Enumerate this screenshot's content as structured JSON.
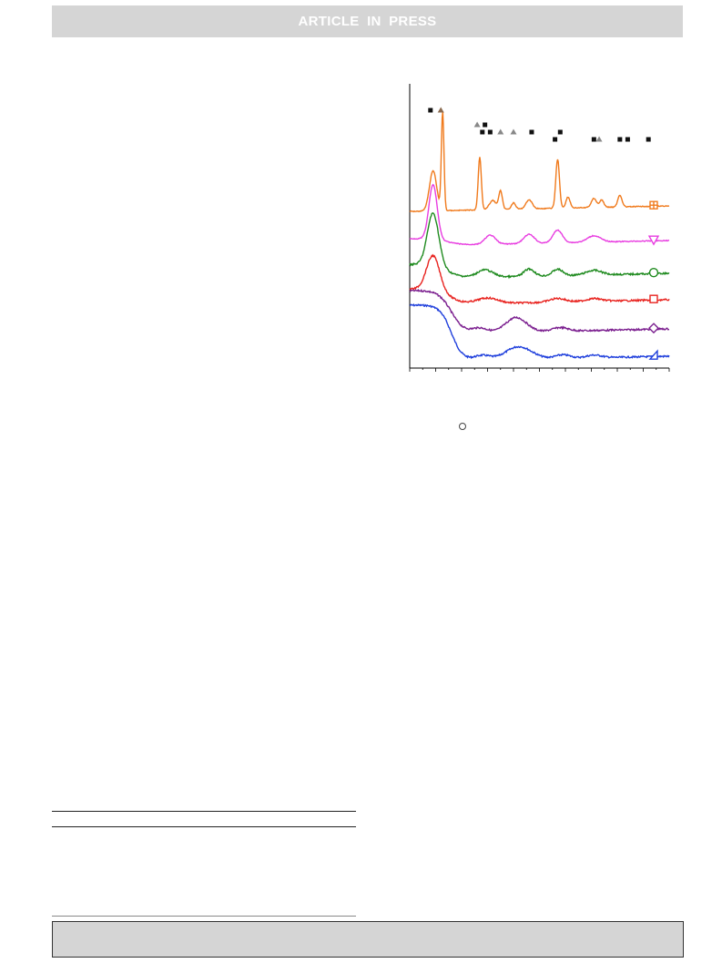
{
  "header": {
    "banner_text": "ARTICLE IN PRESS"
  },
  "chart_data": {
    "type": "line",
    "title": "",
    "xlabel": "",
    "ylabel": "",
    "x_range": [
      0,
      100
    ],
    "grid": false,
    "series": [
      {
        "name": "",
        "color": "#1f3fdc",
        "marker": "triangle",
        "baseline": 0
      },
      {
        "name": "",
        "color": "#7b1f8f",
        "marker": "diamond",
        "baseline": 1
      },
      {
        "name": "",
        "color": "#e8231f",
        "marker": "square",
        "baseline": 2
      },
      {
        "name": "",
        "color": "#1e8a1e",
        "marker": "circle",
        "baseline": 3
      },
      {
        "name": "",
        "color": "#e83de0",
        "marker": "triangle-down",
        "baseline": 4
      },
      {
        "name": "",
        "color": "#f07a1c",
        "marker": "circle-cross",
        "baseline": 5
      }
    ],
    "phase_markers": [
      {
        "x": 8,
        "row": 0,
        "shape": "square"
      },
      {
        "x": 12,
        "row": 0,
        "shape": "triangle"
      },
      {
        "x": 26,
        "row": 1,
        "shape": "triangle"
      },
      {
        "x": 29,
        "row": 1,
        "shape": "square"
      },
      {
        "x": 28,
        "row": 2,
        "shape": "square"
      },
      {
        "x": 31,
        "row": 2,
        "shape": "square"
      },
      {
        "x": 35,
        "row": 2,
        "shape": "triangle"
      },
      {
        "x": 40,
        "row": 2,
        "shape": "triangle"
      },
      {
        "x": 47,
        "row": 2,
        "shape": "square"
      },
      {
        "x": 58,
        "row": 2,
        "shape": "square"
      },
      {
        "x": 56,
        "row": 3,
        "shape": "square"
      },
      {
        "x": 71,
        "row": 3,
        "shape": "square"
      },
      {
        "x": 73,
        "row": 3,
        "shape": "triangle"
      },
      {
        "x": 81,
        "row": 3,
        "shape": "square"
      },
      {
        "x": 84,
        "row": 3,
        "shape": "square"
      },
      {
        "x": 92,
        "row": 3,
        "shape": "square"
      }
    ]
  }
}
